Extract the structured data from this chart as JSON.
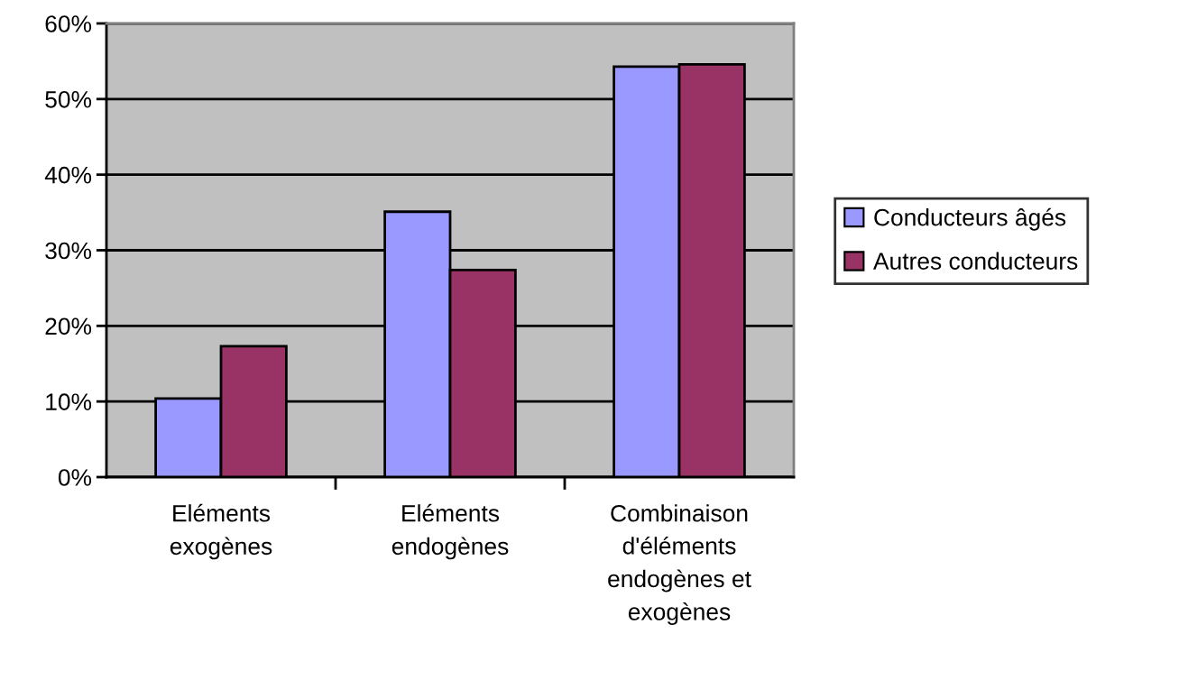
{
  "chart_data": {
    "type": "bar",
    "categories": [
      "Eléments\nexogènes",
      "Eléments\nendogènes",
      "Combinaison\nd'éléments\nendogènes et\nexogènes"
    ],
    "series": [
      {
        "name": "Conducteurs âgés",
        "color": "#9999ff",
        "values": [
          10.4,
          35.1,
          54.3
        ]
      },
      {
        "name": "Autres conducteurs",
        "color": "#993366",
        "values": [
          17.3,
          27.4,
          54.6
        ]
      }
    ],
    "ylim": [
      0,
      60
    ],
    "yticks": [
      {
        "value": 0,
        "label": "0%"
      },
      {
        "value": 10,
        "label": "10%"
      },
      {
        "value": 20,
        "label": "20%"
      },
      {
        "value": 30,
        "label": "30%"
      },
      {
        "value": 40,
        "label": "40%"
      },
      {
        "value": 50,
        "label": "50%"
      },
      {
        "value": 60,
        "label": "60%"
      }
    ],
    "grid": "y",
    "legend": "right"
  }
}
